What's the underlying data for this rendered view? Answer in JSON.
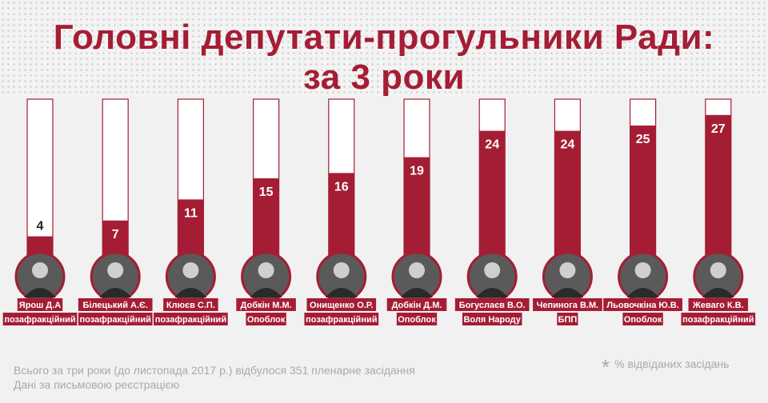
{
  "title_line1": "Головні депутати-прогульники Ради:",
  "title_line2": "за 3 роки",
  "chart_data": {
    "type": "bar",
    "unit": "% відвіданих засідань",
    "ylim": [
      0,
      100
    ],
    "categories": [
      {
        "name": "Ярош Д.А",
        "faction": "позафракційний",
        "value": 4
      },
      {
        "name": "Білецький А.Є.",
        "faction": "позафракційний",
        "value": 7
      },
      {
        "name": "Клюєв С.П.",
        "faction": "позафракційний",
        "value": 11
      },
      {
        "name": "Добкін М.М.",
        "faction": "Опоблок",
        "value": 15
      },
      {
        "name": "Онищенко О.Р.",
        "faction": "позафракційний",
        "value": 16
      },
      {
        "name": "Добкін Д.М.",
        "faction": "Опоблок",
        "value": 19
      },
      {
        "name": "Богуслаєв В.О.",
        "faction": "Воля Народу",
        "value": 24
      },
      {
        "name": "Чепинога В.М.",
        "faction": "БПП",
        "value": 24
      },
      {
        "name": "Льовочкіна Ю.В.",
        "faction": "Опоблок",
        "value": 25
      },
      {
        "name": "Жеваго К.В.",
        "faction": "позафракційний",
        "value": 27
      }
    ]
  },
  "footnote_line1": "Всього за три роки (до листопада 2017 р.) відбулося 351 пленарне засідання",
  "footnote_line2": "Дані за письмовою реєстрацією",
  "legend_star": "*",
  "legend_text": "% відвіданих засідань",
  "colors": {
    "accent": "#a51d34",
    "bar_outline": "#a51d34",
    "label_bg": "#a51d34"
  }
}
